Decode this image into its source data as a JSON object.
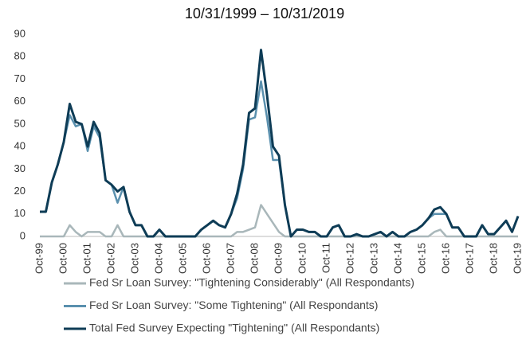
{
  "chart_data": {
    "type": "line",
    "title": "10/31/1999 – 10/31/2019",
    "categories": [
      "Oct-99",
      null,
      null,
      null,
      "Oct-00",
      null,
      null,
      null,
      "Oct-01",
      null,
      null,
      null,
      "Oct-02",
      null,
      null,
      null,
      "Oct-03",
      null,
      null,
      null,
      "Oct-04",
      null,
      null,
      null,
      "Oct-05",
      null,
      null,
      null,
      "Oct-06",
      null,
      null,
      null,
      "Oct-07",
      null,
      null,
      null,
      "Oct-08",
      null,
      null,
      null,
      "Oct-09",
      null,
      null,
      null,
      "Oct-10",
      null,
      null,
      null,
      "Oct-11",
      null,
      null,
      null,
      "Oct-12",
      null,
      null,
      null,
      "Oct-13",
      null,
      null,
      null,
      "Oct-14",
      null,
      null,
      null,
      "Oct-15",
      null,
      null,
      null,
      "Oct-16",
      null,
      null,
      null,
      "Oct-17",
      null,
      null,
      null,
      "Oct-18",
      null,
      null,
      null,
      "Oct-19"
    ],
    "series": [
      {
        "name": "Fed Sr Loan Survey: \"Tightening Considerably\" (All Respondants)",
        "color": "#a9b7ba",
        "values": [
          0,
          0,
          0,
          0,
          0,
          5,
          2,
          0,
          2,
          2,
          2,
          0,
          0,
          5,
          0,
          0,
          0,
          0,
          0,
          0,
          0,
          0,
          0,
          0,
          0,
          0,
          0,
          0,
          0,
          0,
          0,
          0,
          0,
          2,
          2,
          3,
          4,
          14,
          10,
          6,
          2,
          0,
          0,
          0,
          0,
          0,
          0,
          0,
          0,
          0,
          0,
          0,
          0,
          0,
          0,
          0,
          0,
          0,
          0,
          0,
          0,
          0,
          0,
          0,
          0,
          0,
          2,
          3,
          0,
          0,
          0,
          0,
          0,
          0,
          0,
          0,
          0,
          0,
          0,
          0,
          0
        ]
      },
      {
        "name": "Fed Sr Loan Survey: \"Some Tightening\" (All Respondants)",
        "color": "#5a90ae",
        "values": [
          11,
          11,
          24,
          32,
          42,
          54,
          49,
          50,
          38,
          49,
          44,
          25,
          23,
          15,
          22,
          11,
          5,
          5,
          0,
          0,
          3,
          0,
          0,
          0,
          0,
          0,
          0,
          3,
          5,
          7,
          5,
          4,
          10,
          17,
          30,
          52,
          53,
          69,
          53,
          34,
          34,
          14,
          0,
          3,
          3,
          2,
          2,
          0,
          0,
          4,
          5,
          0,
          0,
          1,
          0,
          0,
          1,
          2,
          0,
          2,
          0,
          0,
          2,
          3,
          5,
          8,
          10,
          10,
          10,
          4,
          4,
          0,
          0,
          0,
          5,
          1,
          1,
          4,
          7,
          2,
          9
        ]
      },
      {
        "name": "Total Fed Survey Expecting \"Tightening\" (All Respondants)",
        "color": "#0e3c56",
        "values": [
          11,
          11,
          24,
          32,
          42,
          59,
          51,
          50,
          40,
          51,
          46,
          25,
          23,
          20,
          22,
          11,
          5,
          5,
          0,
          0,
          3,
          0,
          0,
          0,
          0,
          0,
          0,
          3,
          5,
          7,
          5,
          4,
          10,
          19,
          32,
          55,
          57,
          83,
          63,
          40,
          36,
          14,
          0,
          3,
          3,
          2,
          2,
          0,
          0,
          4,
          5,
          0,
          0,
          1,
          0,
          0,
          1,
          2,
          0,
          2,
          0,
          0,
          2,
          3,
          5,
          8,
          12,
          13,
          10,
          4,
          4,
          0,
          0,
          0,
          5,
          1,
          1,
          4,
          7,
          2,
          9
        ]
      }
    ],
    "ylim": [
      0,
      90
    ],
    "yticks": [
      0,
      10,
      20,
      30,
      40,
      50,
      60,
      70,
      80,
      90
    ],
    "grid": false
  }
}
